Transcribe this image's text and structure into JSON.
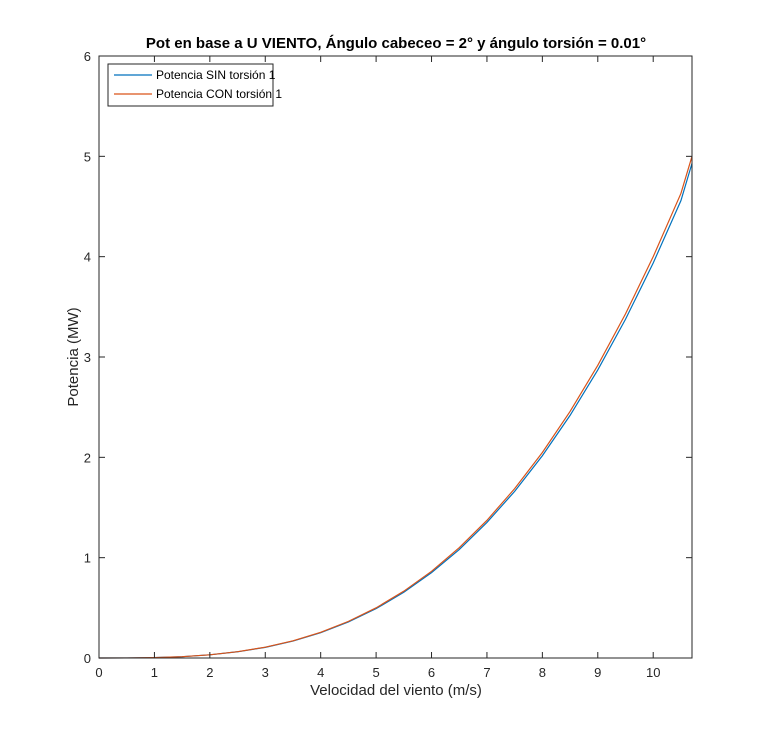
{
  "chart_data": {
    "type": "line",
    "title": "Pot en base a U VIENTO, Ángulo cabeceo = 2° y ángulo torsión = 0.01°",
    "xlabel": "Velocidad del viento (m/s)",
    "ylabel": "Potencia (MW)",
    "xlim": [
      0,
      10.7
    ],
    "ylim": [
      0,
      6
    ],
    "xticks": [
      0,
      1,
      2,
      3,
      4,
      5,
      6,
      7,
      8,
      9,
      10
    ],
    "yticks": [
      0,
      1,
      2,
      3,
      4,
      5,
      6
    ],
    "grid": false,
    "legend_position": "top-left",
    "x": [
      0,
      0.5,
      1,
      1.5,
      2,
      2.5,
      3,
      3.5,
      4,
      4.5,
      5,
      5.5,
      6,
      6.5,
      7,
      7.5,
      8,
      8.5,
      9,
      9.5,
      10,
      10.5,
      10.7
    ],
    "series": [
      {
        "name": "Potencia SIN torsión 1",
        "color": "#0072BD",
        "values": [
          0,
          0.0005,
          0.004,
          0.013,
          0.032,
          0.062,
          0.106,
          0.169,
          0.252,
          0.359,
          0.492,
          0.655,
          0.851,
          1.081,
          1.351,
          1.661,
          2.016,
          2.418,
          2.871,
          3.376,
          3.937,
          4.558,
          4.93
        ]
      },
      {
        "name": "Potencia CON torsión 1",
        "color": "#D95319",
        "values": [
          0,
          0.0005,
          0.004,
          0.013,
          0.032,
          0.063,
          0.108,
          0.171,
          0.256,
          0.365,
          0.5,
          0.666,
          0.864,
          1.099,
          1.372,
          1.688,
          2.048,
          2.457,
          2.917,
          3.43,
          4.0,
          4.63,
          5.0
        ]
      }
    ]
  }
}
